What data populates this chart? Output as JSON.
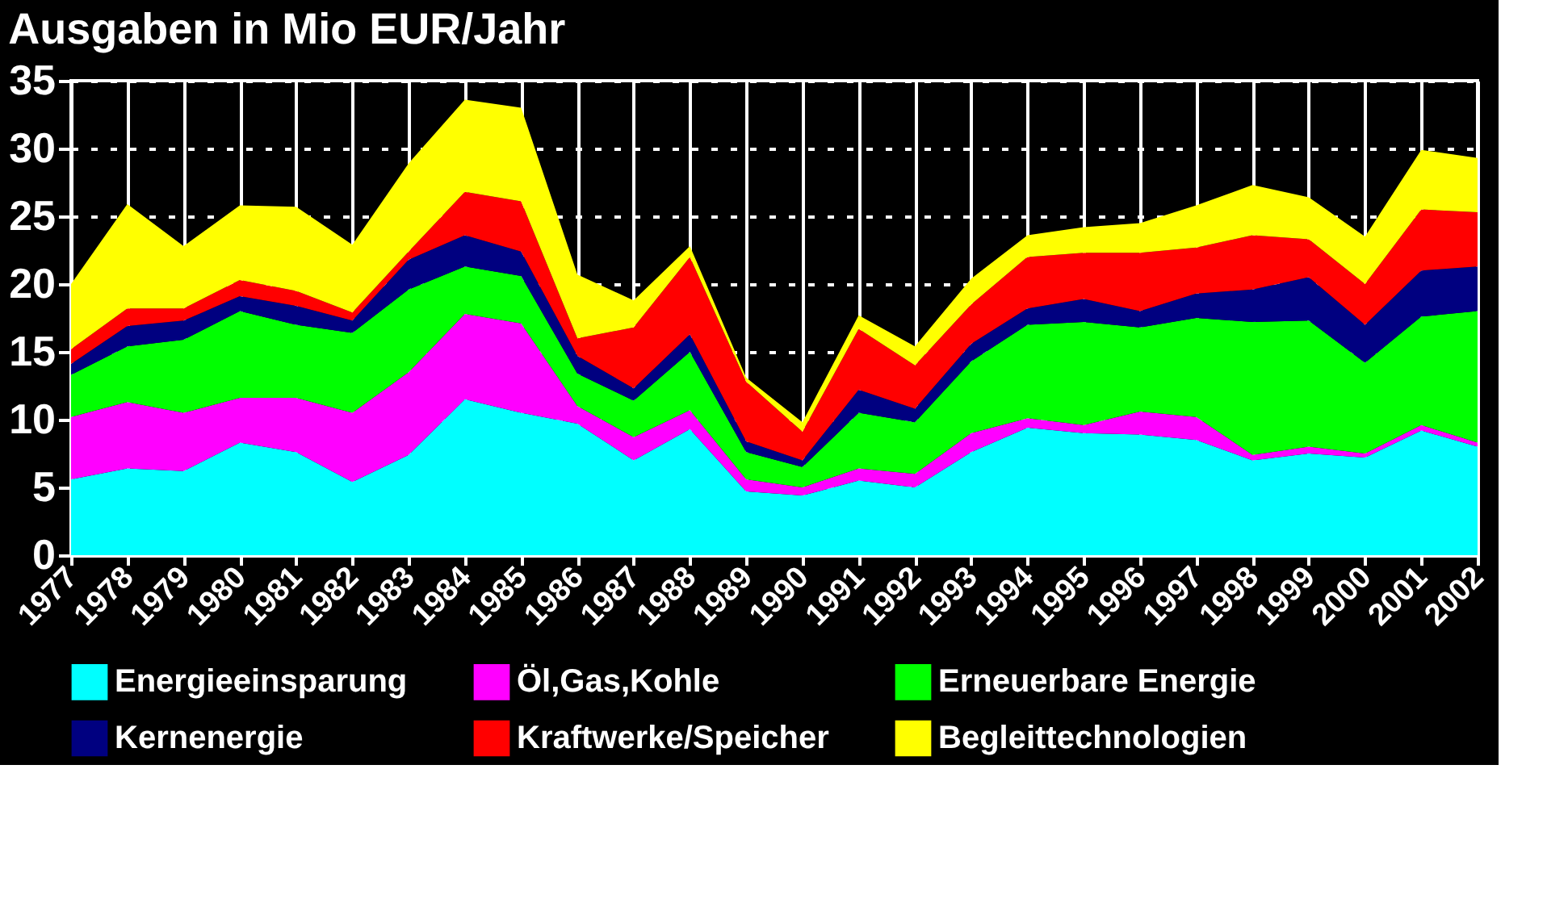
{
  "chart_data": {
    "type": "area",
    "title": "Ausgaben in Mio EUR/Jahr",
    "stacked": true,
    "categories": [
      "1977",
      "1978",
      "1979",
      "1980",
      "1981",
      "1982",
      "1983",
      "1984",
      "1985",
      "1986",
      "1987",
      "1988",
      "1989",
      "1990",
      "1991",
      "1992",
      "1993",
      "1994",
      "1995",
      "1996",
      "1997",
      "1998",
      "1999",
      "2000",
      "2001",
      "2002"
    ],
    "series": [
      {
        "name": "Energieeinsparung",
        "color": "#00ffff",
        "values": [
          5.6,
          6.4,
          6.2,
          8.3,
          7.6,
          5.4,
          7.4,
          11.5,
          10.5,
          9.7,
          7.0,
          9.3,
          4.7,
          4.4,
          5.5,
          5.0,
          7.6,
          9.4,
          9.0,
          8.9,
          8.5,
          7.0,
          7.5,
          7.2,
          9.2,
          8.0
        ]
      },
      {
        "name": "Öl,Gas,Kohle",
        "color": "#ff00ff",
        "values": [
          4.6,
          4.9,
          4.3,
          3.3,
          4.0,
          5.1,
          6.1,
          6.3,
          6.6,
          1.3,
          1.7,
          1.4,
          0.9,
          0.6,
          0.9,
          1.0,
          1.4,
          0.7,
          0.6,
          1.7,
          1.7,
          0.4,
          0.5,
          0.3,
          0.4,
          0.3
        ]
      },
      {
        "name": "Erneuerbare Energie",
        "color": "#00ff00",
        "values": [
          3.1,
          4.1,
          5.4,
          6.4,
          5.4,
          5.9,
          6.1,
          3.5,
          3.5,
          2.4,
          2.7,
          4.3,
          2.0,
          1.5,
          4.1,
          3.8,
          5.3,
          6.9,
          7.6,
          6.2,
          7.3,
          9.8,
          9.3,
          6.7,
          8.0,
          9.7
        ]
      },
      {
        "name": "Kernenergie",
        "color": "#000080",
        "values": [
          0.8,
          1.5,
          1.4,
          1.1,
          1.4,
          0.9,
          2.2,
          2.3,
          1.8,
          1.3,
          0.9,
          1.3,
          0.8,
          0.5,
          1.7,
          1.0,
          1.3,
          1.2,
          1.7,
          1.2,
          1.8,
          2.4,
          3.2,
          2.8,
          3.4,
          3.3
        ]
      },
      {
        "name": "Kraftwerke/Speicher",
        "color": "#ff0000",
        "values": [
          1.1,
          1.3,
          0.9,
          1.2,
          1.1,
          0.6,
          0.6,
          3.2,
          3.7,
          1.3,
          4.5,
          5.7,
          4.4,
          2.1,
          4.5,
          3.2,
          2.9,
          3.8,
          3.4,
          4.3,
          3.4,
          4.0,
          2.8,
          3.0,
          4.5,
          4.0
        ]
      },
      {
        "name": "Begleittechnologien",
        "color": "#ffff00",
        "values": [
          4.8,
          7.7,
          4.6,
          5.5,
          6.2,
          5.0,
          6.5,
          6.8,
          6.9,
          4.7,
          2.0,
          0.8,
          0.3,
          0.7,
          1.0,
          1.4,
          1.9,
          1.6,
          1.9,
          2.2,
          3.1,
          3.7,
          3.1,
          3.5,
          4.4,
          4.0
        ]
      }
    ],
    "ylim": [
      0,
      35
    ],
    "yticks": [
      0,
      5,
      10,
      15,
      20,
      25,
      30,
      35
    ],
    "grid": true,
    "legend": "bottom"
  }
}
